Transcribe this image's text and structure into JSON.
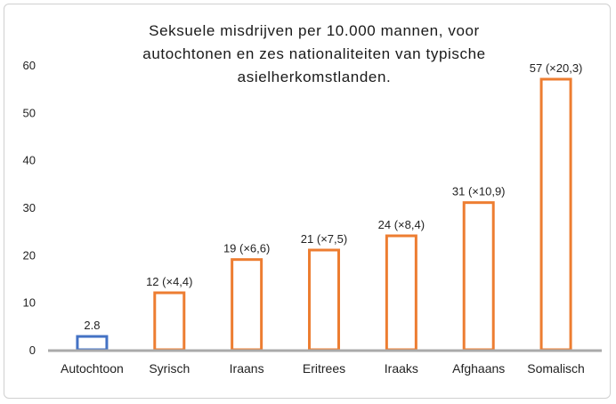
{
  "chart_data": {
    "type": "bar",
    "title_lines": [
      "Seksuele misdrijven per 10.000 mannen, voor",
      "autochtonen en zes nationaliteiten van typische",
      "asielherkomstlanden."
    ],
    "categories": [
      "Autochtoon",
      "Syrisch",
      "Iraans",
      "Eritrees",
      "Iraaks",
      "Afghaans",
      "Somalisch"
    ],
    "values": [
      2.8,
      12,
      19,
      21,
      24,
      31,
      57
    ],
    "data_labels": [
      "2.8",
      "12 (×4,4)",
      "19 (×6,6)",
      "21 (×7,5)",
      "24 (×8,4)",
      "31 (×10,9)",
      "57 (×20,3)"
    ],
    "bar_colors": [
      "#4472c4",
      "#ed7d31",
      "#ed7d31",
      "#ed7d31",
      "#ed7d31",
      "#ed7d31",
      "#ed7d31"
    ],
    "y_ticks": [
      "0",
      "10",
      "20",
      "30",
      "40",
      "50",
      "60"
    ],
    "ylim": [
      0,
      60
    ],
    "xlabel": "",
    "ylabel": "",
    "grid": false,
    "axis_color": "#aaaaaa"
  }
}
